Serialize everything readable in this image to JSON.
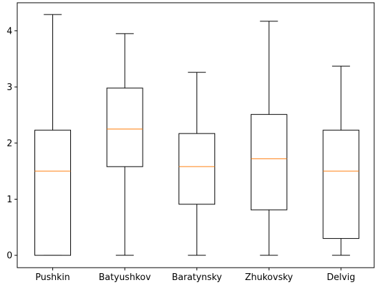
{
  "chart_data": {
    "type": "box",
    "categories": [
      "Pushkin",
      "Batyushkov",
      "Baratynsky",
      "Zhukovsky",
      "Delvig"
    ],
    "boxes": [
      {
        "whisker_low": 0.0,
        "q1": 0.0,
        "median": 1.5,
        "q3": 2.23,
        "whisker_high": 4.29
      },
      {
        "whisker_low": 0.0,
        "q1": 1.58,
        "median": 2.25,
        "q3": 2.98,
        "whisker_high": 3.95
      },
      {
        "whisker_low": 0.0,
        "q1": 0.91,
        "median": 1.58,
        "q3": 2.17,
        "whisker_high": 3.26
      },
      {
        "whisker_low": 0.0,
        "q1": 0.81,
        "median": 1.72,
        "q3": 2.51,
        "whisker_high": 4.17
      },
      {
        "whisker_low": 0.0,
        "q1": 0.3,
        "median": 1.5,
        "q3": 2.23,
        "whisker_high": 3.37
      }
    ],
    "y_ticks": [
      0,
      1,
      2,
      3,
      4
    ],
    "ylim": [
      -0.22,
      4.5
    ],
    "median_color": "#ff7f0e",
    "box_color": "#000000",
    "grid": false
  }
}
